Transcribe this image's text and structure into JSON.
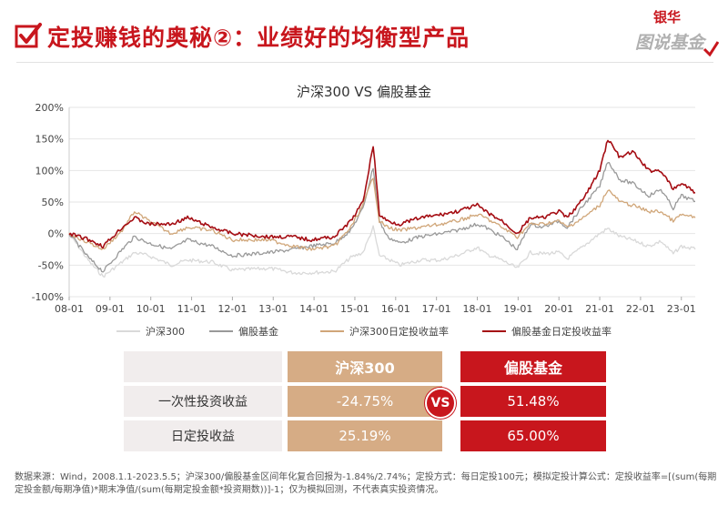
{
  "page_title": "定投赚钱的奥秘②：业绩好的均衡型产品",
  "logo": {
    "line1": "银华",
    "line2": "图说基金"
  },
  "chart_data": {
    "type": "line",
    "title": "沪深300 VS 偏股基金",
    "x_ticks": [
      "08-01",
      "09-01",
      "10-01",
      "11-01",
      "12-01",
      "13-01",
      "14-01",
      "15-01",
      "16-01",
      "17-01",
      "18-01",
      "19-01",
      "20-01",
      "21-01",
      "22-01",
      "23-01"
    ],
    "y_ticks": [
      "200%",
      "150%",
      "100%",
      "50%",
      "0%",
      "-50%",
      "-100%"
    ],
    "ylim": [
      -100,
      200
    ],
    "y_unit": "%",
    "grid": true,
    "legend_position": "bottom",
    "series": [
      {
        "name": "沪深300",
        "color": "#d9d9d9",
        "x": [
          2008.0,
          2008.5,
          2008.83,
          2009.3,
          2009.6,
          2009.95,
          2010.5,
          2010.9,
          2011.5,
          2012.0,
          2012.9,
          2013.5,
          2013.9,
          2014.5,
          2014.9,
          2015.2,
          2015.45,
          2015.6,
          2015.8,
          2016.1,
          2016.6,
          2017.1,
          2017.5,
          2018.0,
          2018.2,
          2018.6,
          2018.98,
          2019.3,
          2019.6,
          2020.0,
          2020.2,
          2020.6,
          2021.0,
          2021.2,
          2021.5,
          2021.8,
          2022.2,
          2022.5,
          2022.8,
          2023.0,
          2023.34
        ],
        "values": [
          0,
          -45,
          -68,
          -45,
          -30,
          -35,
          -50,
          -42,
          -45,
          -58,
          -55,
          -62,
          -62,
          -60,
          -38,
          -30,
          10,
          -35,
          -40,
          -50,
          -42,
          -42,
          -35,
          -22,
          -32,
          -42,
          -55,
          -30,
          -32,
          -30,
          -40,
          -20,
          0,
          8,
          -5,
          -10,
          -20,
          -12,
          -32,
          -20,
          -25
        ]
      },
      {
        "name": "偏股基金",
        "color": "#999999",
        "x": [
          2008.0,
          2008.5,
          2008.83,
          2009.3,
          2009.6,
          2009.95,
          2010.5,
          2010.9,
          2011.5,
          2012.0,
          2012.9,
          2013.5,
          2013.9,
          2014.5,
          2014.9,
          2015.2,
          2015.45,
          2015.6,
          2015.8,
          2016.1,
          2016.6,
          2017.1,
          2017.5,
          2018.0,
          2018.2,
          2018.6,
          2018.98,
          2019.3,
          2019.6,
          2020.0,
          2020.2,
          2020.6,
          2021.0,
          2021.2,
          2021.5,
          2021.8,
          2022.2,
          2022.5,
          2022.8,
          2023.0,
          2023.34
        ],
        "values": [
          0,
          -40,
          -60,
          -25,
          -5,
          -15,
          -25,
          -10,
          -20,
          -35,
          -30,
          -25,
          -20,
          -15,
          5,
          40,
          105,
          20,
          -5,
          -15,
          -5,
          0,
          5,
          15,
          10,
          -5,
          -25,
          15,
          10,
          20,
          10,
          45,
          75,
          115,
          85,
          80,
          60,
          70,
          40,
          60,
          51
        ]
      },
      {
        "name": "沪深300日定投收益率",
        "color": "#d0a679",
        "x": [
          2008.0,
          2008.5,
          2008.83,
          2009.3,
          2009.6,
          2009.95,
          2010.5,
          2010.9,
          2011.5,
          2012.0,
          2012.9,
          2013.5,
          2013.9,
          2014.5,
          2014.9,
          2015.2,
          2015.45,
          2015.6,
          2015.8,
          2016.1,
          2016.6,
          2017.1,
          2017.5,
          2018.0,
          2018.2,
          2018.6,
          2018.98,
          2019.3,
          2019.6,
          2020.0,
          2020.2,
          2020.6,
          2021.0,
          2021.2,
          2021.5,
          2021.8,
          2022.2,
          2022.5,
          2022.8,
          2023.0,
          2023.34
        ],
        "values": [
          0,
          -15,
          -25,
          5,
          35,
          20,
          0,
          10,
          5,
          -10,
          -10,
          -20,
          -25,
          -20,
          10,
          45,
          90,
          20,
          10,
          5,
          10,
          15,
          20,
          30,
          25,
          10,
          -5,
          15,
          15,
          20,
          10,
          25,
          45,
          70,
          50,
          45,
          35,
          35,
          20,
          30,
          25
        ]
      },
      {
        "name": "偏股基金日定投收益率",
        "color": "#a50d13",
        "x": [
          2008.0,
          2008.5,
          2008.83,
          2009.3,
          2009.6,
          2009.95,
          2010.5,
          2010.9,
          2011.5,
          2012.0,
          2012.9,
          2013.5,
          2013.9,
          2014.5,
          2014.9,
          2015.2,
          2015.45,
          2015.6,
          2015.8,
          2016.1,
          2016.6,
          2017.1,
          2017.5,
          2018.0,
          2018.2,
          2018.6,
          2018.98,
          2019.3,
          2019.6,
          2020.0,
          2020.2,
          2020.6,
          2021.0,
          2021.2,
          2021.5,
          2021.8,
          2022.2,
          2022.5,
          2022.8,
          2023.0,
          2023.34
        ],
        "values": [
          0,
          -10,
          -20,
          10,
          25,
          15,
          15,
          25,
          10,
          0,
          -5,
          -5,
          -10,
          -5,
          20,
          50,
          140,
          30,
          20,
          15,
          25,
          30,
          35,
          45,
          35,
          20,
          0,
          25,
          25,
          35,
          25,
          55,
          100,
          150,
          120,
          130,
          100,
          100,
          70,
          80,
          65
        ]
      }
    ]
  },
  "table": {
    "header_empty": "",
    "col1": "沪深300",
    "col2": "偏股基金",
    "vs_label": "VS",
    "rows": [
      {
        "label": "一次性投资收益",
        "v1": "-24.75%",
        "v2": "51.48%"
      },
      {
        "label": "日定投收益",
        "v1": "25.19%",
        "v2": "65.00%"
      }
    ]
  },
  "footnote": "数据来源：Wind，2008.1.1-2023.5.5；沪深300/偏股基金区间年化复合回报为-1.84%/2.74%；定投方式：每日定投100元；模拟定投计算公式：定投收益率=[(sum(每期定投金额/每期净值)*期末净值/(sum(每期定投金额*投资期数))]-1；仅为模拟回测，不代表真实投资情况。"
}
